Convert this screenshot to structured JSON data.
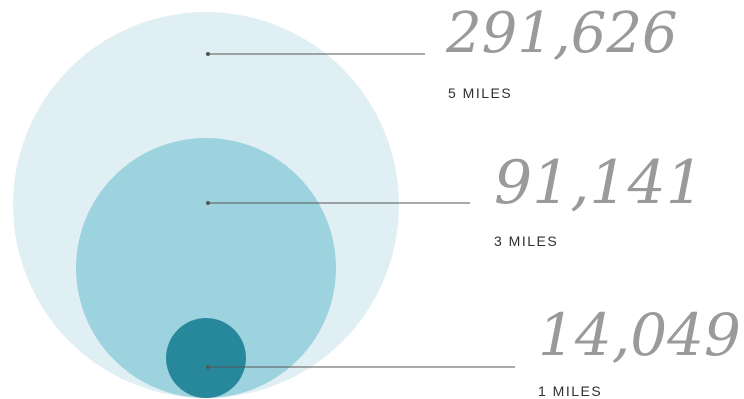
{
  "rings": [
    {
      "value": "291,626",
      "label": "5 MILES",
      "color": "#e0eff4"
    },
    {
      "value": "91,141",
      "label": "3 MILES",
      "color": "#9dd3de"
    },
    {
      "value": "14,049",
      "label": "1 MILES",
      "color": "#26889a"
    }
  ],
  "colors": {
    "value_text": "#9a9a9a",
    "label_text": "#2f2f2f",
    "leader_line": "#555555"
  }
}
